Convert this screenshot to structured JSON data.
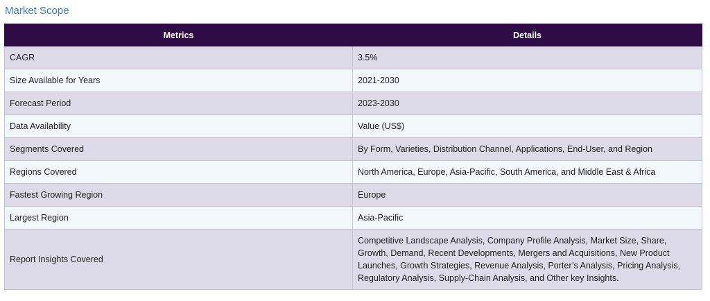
{
  "section": {
    "title": "Market Scope"
  },
  "table": {
    "headers": [
      "Metrics",
      "Details"
    ],
    "rows": [
      {
        "metric": "CAGR",
        "detail": "3.5%"
      },
      {
        "metric": "Size Available for Years",
        "detail": "2021-2030"
      },
      {
        "metric": "Forecast Period",
        "detail": "2023-2030"
      },
      {
        "metric": "Data Availability",
        "detail": "Value (US$)"
      },
      {
        "metric": "Segments Covered",
        "detail": "By Form, Varieties, Distribution Channel, Applications, End-User, and Region"
      },
      {
        "metric": "Regions Covered",
        "detail": "North America, Europe, Asia-Pacific, South America, and Middle East & Africa"
      },
      {
        "metric": "Fastest Growing Region",
        "detail": "Europe"
      },
      {
        "metric": "Largest Region",
        "detail": "Asia-Pacific"
      },
      {
        "metric": "Report Insights Covered",
        "detail": "Competitive Landscape Analysis, Company Profile Analysis, Market Size, Share, Growth, Demand, Recent Developments, Mergers and Acquisitions, New Product Launches, Growth Strategies, Revenue Analysis, Porter’s Analysis, Pricing Analysis, Regulatory Analysis, Supply-Chain Analysis, and Other key Insights."
      }
    ]
  },
  "colors": {
    "header_bg": "#2f0c45",
    "title_text": "#3d7cc4",
    "row_odd": "#dedbe8",
    "row_even": "#f1f7fb"
  }
}
